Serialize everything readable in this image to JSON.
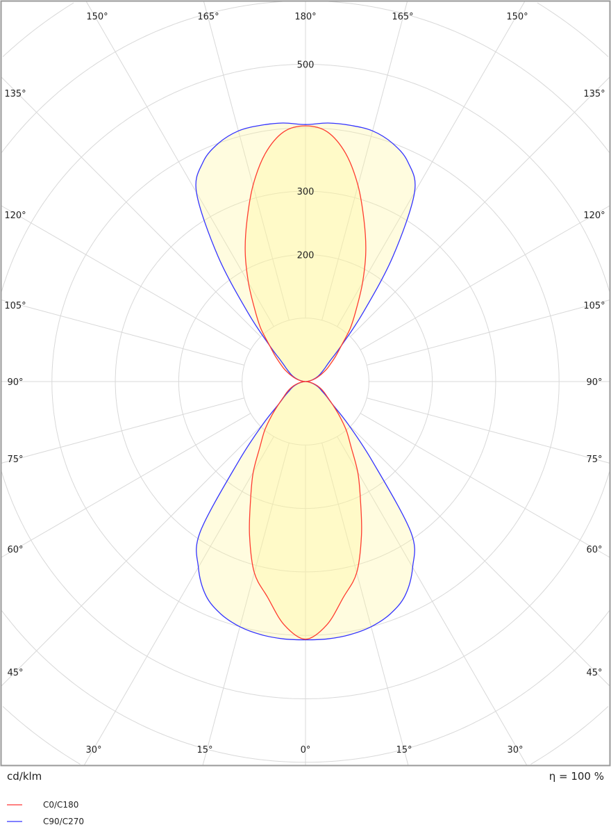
{
  "chart_data": {
    "type": "polar",
    "unit_label": "cd/klm",
    "efficiency_label": "η = 100 %",
    "radial_ticks": [
      {
        "value": 200,
        "label": "200"
      },
      {
        "value": 300,
        "label": "300"
      },
      {
        "value": 500,
        "label": "500"
      }
    ],
    "radial_grid_step": 100,
    "angle_labels": {
      "top": [
        "150°",
        "165°",
        "180°",
        "165°",
        "150°"
      ],
      "left": [
        "135°",
        "120°",
        "105°",
        "90°",
        "75°",
        "60°",
        "45°"
      ],
      "right": [
        "135°",
        "120°",
        "105°",
        "90°",
        "75°",
        "60°",
        "45°"
      ],
      "bottom": [
        "30°",
        "15°",
        "0°",
        "15°",
        "30°"
      ]
    },
    "gamma": [
      0,
      5,
      10,
      15,
      20,
      25,
      30,
      35,
      40,
      45,
      50,
      55,
      60,
      65,
      70,
      75,
      80,
      85,
      90,
      95,
      100,
      105,
      110,
      115,
      120,
      125,
      130,
      135,
      140,
      145,
      150,
      155,
      160,
      165,
      170,
      175,
      180
    ],
    "series": [
      {
        "name": "C0/C180",
        "color": "#ff3b2f",
        "values": [
          406,
          385,
          345,
          312,
          258,
          205,
          165,
          125,
          100,
          75,
          55,
          42,
          34,
          27,
          20,
          14,
          8,
          3,
          0,
          3,
          8,
          14,
          20,
          28,
          38,
          48,
          62,
          80,
          110,
          140,
          180,
          225,
          270,
          320,
          365,
          395,
          403
        ]
      },
      {
        "name": "C90/C270",
        "color": "#3333ff",
        "values": [
          407,
          407,
          405,
          400,
          390,
          372,
          338,
          290,
          165,
          95,
          55,
          40,
          30,
          24,
          18,
          12,
          7,
          3,
          0,
          3,
          7,
          12,
          18,
          24,
          30,
          38,
          50,
          80,
          140,
          240,
          344,
          382,
          400,
          409,
          410,
          409,
          405
        ]
      }
    ],
    "legend_position": "bottom-left",
    "grid": true
  }
}
